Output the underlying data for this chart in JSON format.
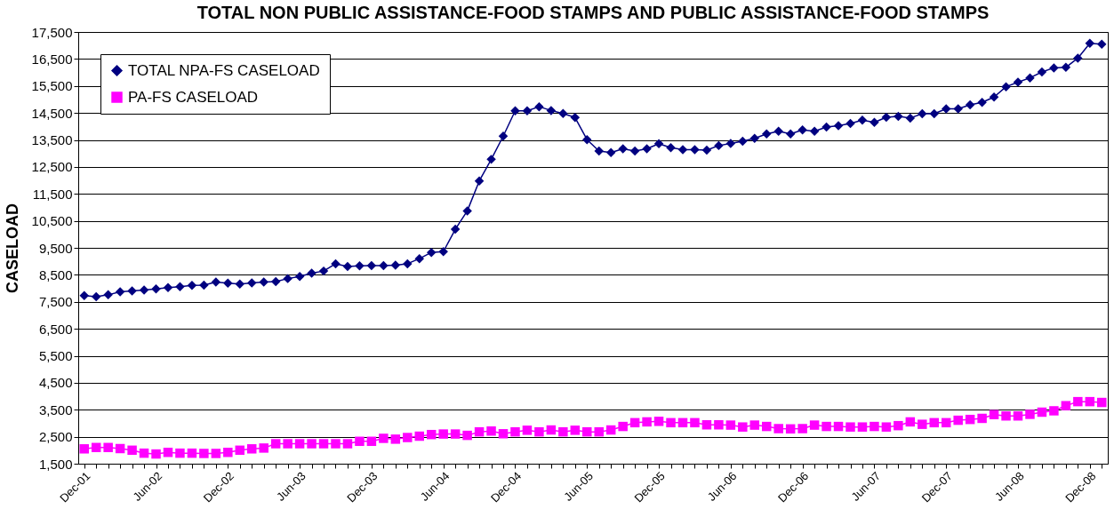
{
  "chart_data": {
    "type": "line",
    "title": "TOTAL NON PUBLIC ASSISTANCE-FOOD STAMPS AND PUBLIC ASSISTANCE-FOOD STAMPS",
    "ylabel": "CASELOAD",
    "categories": [
      "Dec-01",
      null,
      null,
      null,
      null,
      null,
      "Jun-02",
      null,
      null,
      null,
      null,
      null,
      "Dec-02",
      null,
      null,
      null,
      null,
      null,
      "Jun-03",
      null,
      null,
      null,
      null,
      null,
      "Dec-03",
      null,
      null,
      null,
      null,
      null,
      "Jun-04",
      null,
      null,
      null,
      null,
      null,
      "Dec-04",
      null,
      null,
      null,
      null,
      null,
      "Jun-05",
      null,
      null,
      null,
      null,
      null,
      "Dec-05",
      null,
      null,
      null,
      null,
      null,
      "Jun-06",
      null,
      null,
      null,
      null,
      null,
      "Dec-06",
      null,
      null,
      null,
      null,
      null,
      "Jun-07",
      null,
      null,
      null,
      null,
      null,
      "Dec-07",
      null,
      null,
      null,
      null,
      null,
      "Jun-08",
      null,
      null,
      null,
      null,
      null,
      "Dec-08",
      null
    ],
    "series": [
      {
        "name": "TOTAL NPA-FS CASELOAD",
        "color": "#000080",
        "marker": "diamond",
        "values": [
          7730,
          7690,
          7760,
          7870,
          7900,
          7940,
          7980,
          8030,
          8060,
          8110,
          8120,
          8230,
          8190,
          8160,
          8200,
          8230,
          8250,
          8360,
          8440,
          8560,
          8640,
          8910,
          8810,
          8830,
          8840,
          8840,
          8860,
          8910,
          9100,
          9330,
          9360,
          10190,
          10870,
          11980,
          12780,
          13640,
          14580,
          14580,
          14730,
          14590,
          14480,
          14330,
          13510,
          13090,
          13030,
          13170,
          13090,
          13170,
          13360,
          13210,
          13140,
          13140,
          13120,
          13290,
          13370,
          13450,
          13560,
          13720,
          13820,
          13720,
          13870,
          13820,
          13980,
          14030,
          14110,
          14230,
          14150,
          14340,
          14370,
          14310,
          14470,
          14470,
          14650,
          14650,
          14800,
          14890,
          15090,
          15470,
          15640,
          15800,
          16020,
          16170,
          16190,
          16530,
          17080,
          17050
        ]
      },
      {
        "name": "PA-FS CASELOAD",
        "color": "#ff00ff",
        "marker": "square",
        "values": [
          2050,
          2100,
          2100,
          2060,
          2000,
          1890,
          1860,
          1920,
          1890,
          1890,
          1880,
          1880,
          1920,
          2000,
          2050,
          2080,
          2240,
          2240,
          2240,
          2240,
          2240,
          2240,
          2240,
          2330,
          2330,
          2440,
          2410,
          2470,
          2520,
          2580,
          2600,
          2600,
          2550,
          2680,
          2710,
          2610,
          2680,
          2740,
          2680,
          2750,
          2680,
          2740,
          2680,
          2680,
          2750,
          2880,
          3020,
          3050,
          3070,
          3020,
          3020,
          3020,
          2940,
          2940,
          2930,
          2860,
          2930,
          2880,
          2800,
          2790,
          2800,
          2930,
          2880,
          2880,
          2860,
          2860,
          2880,
          2860,
          2910,
          3050,
          2960,
          3020,
          3020,
          3110,
          3140,
          3180,
          3320,
          3270,
          3270,
          3330,
          3410,
          3460,
          3650,
          3800,
          3800,
          3770
        ]
      }
    ],
    "ylim": [
      1500,
      17500
    ],
    "yticks": [
      {
        "value": 1500,
        "label": "1,500"
      },
      {
        "value": 2500,
        "label": "2,500"
      },
      {
        "value": 3500,
        "label": "3,500"
      },
      {
        "value": 4500,
        "label": "4,500"
      },
      {
        "value": 5500,
        "label": "5,500"
      },
      {
        "value": 6500,
        "label": "6,500"
      },
      {
        "value": 7500,
        "label": "7,500"
      },
      {
        "value": 8500,
        "label": "8,500"
      },
      {
        "value": 9500,
        "label": "9,500"
      },
      {
        "value": 10500,
        "label": "10,500"
      },
      {
        "value": 11500,
        "label": "11,500"
      },
      {
        "value": 12500,
        "label": "12,500"
      },
      {
        "value": 13500,
        "label": "13,500"
      },
      {
        "value": 14500,
        "label": "14,500"
      },
      {
        "value": 15500,
        "label": "15,500"
      },
      {
        "value": 16500,
        "label": "16,500"
      },
      {
        "value": 17500,
        "label": "17,500"
      }
    ],
    "grid": "y",
    "legend": "top left",
    "line_style": "solid"
  }
}
